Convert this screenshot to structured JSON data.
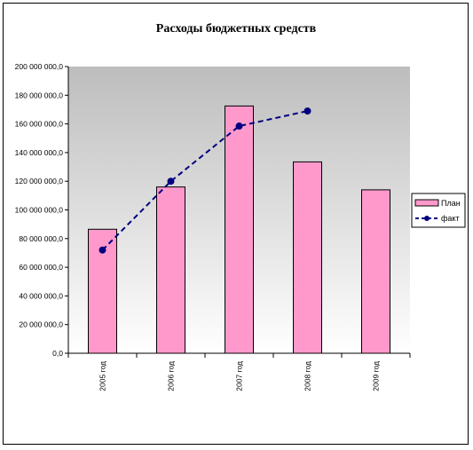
{
  "chart_data": {
    "type": "bar",
    "title": "Расходы бюджетных средств",
    "categories": [
      "2005 год",
      "2006 год",
      "2007 год",
      "2008 год",
      "2009 год"
    ],
    "series": [
      {
        "name": "План",
        "kind": "bar",
        "color": "#ff99cc",
        "values": [
          86500000,
          116000000,
          172500000,
          133500000,
          114000000
        ]
      },
      {
        "name": "факт",
        "kind": "line",
        "color": "#000080",
        "line_style": "dashed",
        "marker": "circle",
        "values": [
          72000000,
          120000000,
          158500000,
          169000000,
          null
        ]
      }
    ],
    "ylim": [
      0,
      200000000
    ],
    "ytick_step": 20000000,
    "yticks": [
      "0,0",
      "20 000 000,0",
      "40 000 000,0",
      "60 000 000,0",
      "80 000 000,0",
      "100 000 000,0",
      "120 000 000,0",
      "140 000 000,0",
      "160 000 000,0",
      "180 000 000,0",
      "200 000 000,0"
    ],
    "xlabel": "",
    "ylabel": "",
    "plot_background": "gradient gray to white",
    "grid": false,
    "legend_position": "right"
  }
}
